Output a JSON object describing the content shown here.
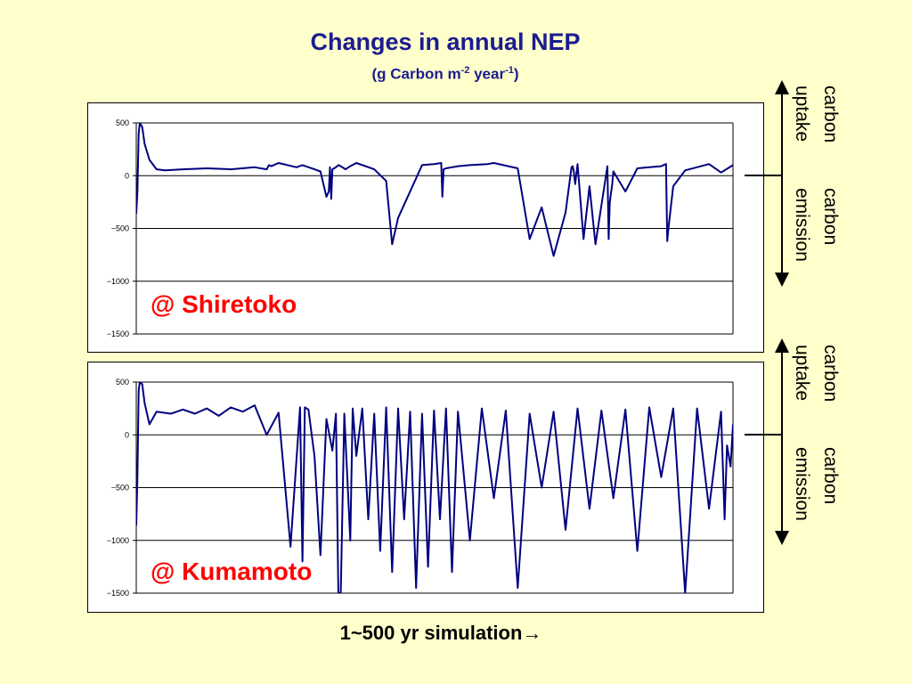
{
  "header": {
    "title": "Changes in annual NEP",
    "subtitle_prefix": "(g Carbon m",
    "subtitle_exp1": "-2",
    "subtitle_mid": " year",
    "subtitle_exp2": "-1",
    "subtitle_suffix": ")"
  },
  "annotation_labels": {
    "uptake_line1": "carbon",
    "uptake_line2": "uptake",
    "emission_line1": "carbon",
    "emission_line2": "emission"
  },
  "x_note": "1~500 yr simulation→",
  "colors": {
    "line": "#00007f",
    "label": "#ff0000",
    "background": "#ffffcc"
  },
  "chart_data": [
    {
      "type": "line",
      "site_label": "@ Shiretoko",
      "x_range": [
        1,
        500
      ],
      "ylim": [
        -1500,
        500
      ],
      "yticks": [
        "500",
        "0",
        "−500",
        "−1000",
        "−1500"
      ],
      "ytick_values": [
        500,
        0,
        -500,
        -1000,
        -1500
      ],
      "series": [
        {
          "x": [
            1,
            2,
            3,
            4,
            6,
            8,
            12,
            18,
            25,
            40,
            60,
            80,
            100,
            110,
            112,
            114,
            120,
            135,
            140,
            150,
            155,
            160,
            162,
            163,
            164,
            165,
            168,
            170,
            172,
            176,
            180,
            185,
            200,
            210,
            215,
            220,
            240,
            250,
            256,
            257,
            258,
            260,
            270,
            280,
            295,
            300,
            320,
            330,
            340,
            350,
            360,
            365,
            366,
            367,
            368,
            370,
            375,
            380,
            385,
            395,
            396,
            397,
            399,
            400,
            410,
            420,
            430,
            440,
            444,
            445,
            446,
            450,
            460,
            480,
            490,
            500
          ],
          "y": [
            -360,
            -150,
            400,
            500,
            460,
            300,
            150,
            60,
            50,
            60,
            70,
            60,
            80,
            60,
            100,
            90,
            120,
            80,
            100,
            60,
            40,
            -200,
            -150,
            80,
            -220,
            60,
            80,
            100,
            90,
            60,
            90,
            120,
            60,
            -50,
            -650,
            -400,
            100,
            110,
            120,
            -200,
            60,
            70,
            90,
            100,
            110,
            120,
            70,
            -600,
            -300,
            -760,
            -350,
            80,
            90,
            30,
            -80,
            110,
            -600,
            -100,
            -650,
            90,
            -600,
            -250,
            -80,
            40,
            -150,
            70,
            80,
            90,
            110,
            -620,
            -500,
            -100,
            50,
            110,
            30,
            100
          ]
        }
      ]
    },
    {
      "type": "line",
      "site_label": "@ Kumamoto",
      "x_range": [
        1,
        500
      ],
      "ylim": [
        -1500,
        500
      ],
      "yticks": [
        "500",
        "0",
        "−500",
        "−1000",
        "−1500"
      ],
      "ytick_values": [
        500,
        0,
        -500,
        -1000,
        -1500
      ],
      "series": [
        {
          "x": [
            1,
            2,
            3,
            4,
            6,
            8,
            12,
            18,
            30,
            40,
            50,
            60,
            70,
            80,
            90,
            100,
            110,
            120,
            130,
            138,
            140,
            142,
            145,
            150,
            155,
            160,
            165,
            168,
            170,
            172,
            175,
            180,
            182,
            185,
            190,
            195,
            200,
            205,
            210,
            215,
            220,
            225,
            230,
            235,
            240,
            245,
            250,
            255,
            260,
            265,
            270,
            280,
            290,
            300,
            310,
            320,
            330,
            340,
            350,
            360,
            370,
            380,
            390,
            400,
            410,
            420,
            430,
            440,
            450,
            460,
            470,
            480,
            490,
            493,
            495,
            498,
            500
          ],
          "y": [
            -860,
            -400,
            420,
            500,
            480,
            300,
            100,
            220,
            200,
            240,
            200,
            250,
            180,
            260,
            220,
            280,
            0,
            210,
            -1060,
            260,
            -1200,
            260,
            240,
            -200,
            -1140,
            150,
            -150,
            200,
            -1500,
            -1500,
            200,
            -1000,
            250,
            -200,
            250,
            -800,
            200,
            -1100,
            260,
            -1300,
            250,
            -800,
            220,
            -1450,
            200,
            -1250,
            230,
            -800,
            250,
            -1300,
            220,
            -1000,
            250,
            -600,
            230,
            -1450,
            200,
            -500,
            220,
            -900,
            250,
            -700,
            230,
            -600,
            240,
            -1100,
            260,
            -400,
            250,
            -1500,
            250,
            -700,
            220,
            -800,
            -100,
            -300,
            100
          ]
        }
      ]
    }
  ]
}
